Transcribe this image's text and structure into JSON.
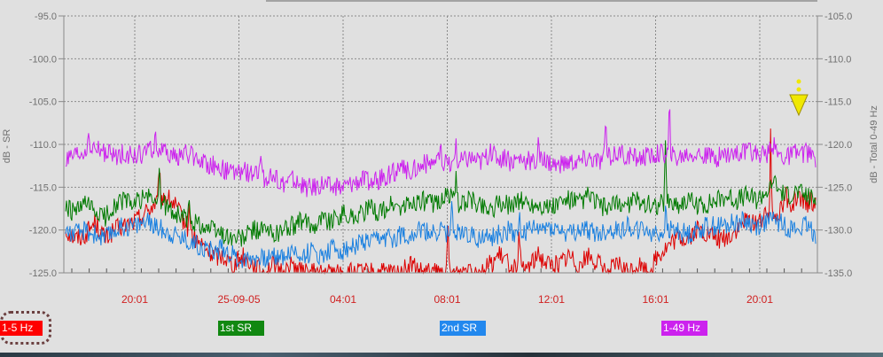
{
  "chart_data": {
    "type": "line",
    "ylabel": "dB - SR",
    "y2label": "dB - Total 0-49 Hz",
    "ylim": [
      -125.0,
      -95.0
    ],
    "y2lim": [
      -135.0,
      -105.0
    ],
    "y_ticks": [
      "-95.0",
      "-100.0",
      "-105.0",
      "-110.0",
      "-115.0",
      "-120.0",
      "-125.0"
    ],
    "y2_ticks": [
      "-105.0",
      "-110.0",
      "-115.0",
      "-120.0",
      "-125.0",
      "-130.0",
      "-135.0"
    ],
    "x_ticks": [
      "20:01",
      "25-09-05",
      "04:01",
      "08:01",
      "12:01",
      "16:01",
      "20:01"
    ],
    "grid": true,
    "series": [
      {
        "name": "1-5 Hz",
        "color": "#dd0000",
        "values": [
          -120,
          -121,
          -120.5,
          -119,
          -121,
          -120,
          -119.5,
          -119,
          -118,
          -117,
          -116,
          -117,
          -119,
          -121,
          -122,
          -123,
          -123,
          -124,
          -123,
          -124,
          -125,
          -124,
          -125,
          -124,
          -125,
          -125,
          -125,
          -125,
          -125,
          -125,
          -125,
          -125,
          -125,
          -125,
          -125,
          -124,
          -125,
          -125,
          -125,
          -125,
          -125,
          -124,
          -125,
          -124,
          -123,
          -124,
          -125,
          -124,
          -123,
          -124,
          -124,
          -123,
          -124,
          -123,
          -124,
          -125,
          -124,
          -125,
          -124,
          -125,
          -123,
          -122,
          -121,
          -121,
          -120,
          -120.5,
          -121,
          -121,
          -120,
          -119,
          -119,
          -118.5,
          -118,
          -117,
          -116.5,
          -117,
          -116.5
        ]
      },
      {
        "name": "1st SR",
        "color": "#007a00",
        "values": [
          -117.5,
          -118,
          -117,
          -118,
          -118.5,
          -117,
          -116.5,
          -117,
          -116,
          -116.5,
          -117,
          -118,
          -118.5,
          -119,
          -119.5,
          -120,
          -120.5,
          -121,
          -121,
          -120,
          -120,
          -120.5,
          -120,
          -119.5,
          -119,
          -119.5,
          -118.5,
          -119,
          -118,
          -118.5,
          -118,
          -117.5,
          -118,
          -117,
          -117.5,
          -117,
          -116.5,
          -117,
          -116.5,
          -116,
          -117,
          -116.5,
          -117,
          -117.5,
          -117,
          -117,
          -116.5,
          -117,
          -117,
          -117.5,
          -117,
          -116.5,
          -117,
          -116,
          -117,
          -117.5,
          -117,
          -117,
          -116.5,
          -117,
          -117,
          -116.5,
          -117,
          -116.5,
          -117,
          -117,
          -116.5,
          -116,
          -116.5,
          -116,
          -116.5,
          -115.5,
          -115,
          -116,
          -115.5,
          -116,
          -116.5
        ]
      },
      {
        "name": "2nd SR",
        "color": "#1a80e0",
        "values": [
          -120,
          -120.5,
          -120,
          -120.5,
          -121,
          -120,
          -119.5,
          -119.5,
          -119,
          -119.5,
          -120,
          -120.5,
          -121,
          -121.5,
          -122,
          -122.5,
          -122,
          -123,
          -123.5,
          -123,
          -123.5,
          -123,
          -123,
          -122.5,
          -123,
          -122.5,
          -123,
          -122,
          -122.5,
          -122,
          -121.5,
          -121.5,
          -121,
          -121,
          -120.5,
          -120.5,
          -120,
          -120.5,
          -120,
          -120.5,
          -120,
          -120.5,
          -121,
          -121,
          -120.5,
          -120,
          -120.5,
          -120,
          -120,
          -119.5,
          -120,
          -120.5,
          -120,
          -120,
          -120.5,
          -120,
          -120,
          -119.5,
          -120,
          -120,
          -120.5,
          -120,
          -120,
          -120.5,
          -120,
          -119.5,
          -119.5,
          -119.5,
          -119,
          -119,
          -119.5,
          -119,
          -119,
          -119.5,
          -120,
          -119.5,
          -120.5
        ]
      },
      {
        "name": "1-49 Hz",
        "color": "#cc22ee",
        "values": [
          -112,
          -111.5,
          -111,
          -110.5,
          -111,
          -111.5,
          -111,
          -111.5,
          -111,
          -110.5,
          -111,
          -111.5,
          -111,
          -111.5,
          -112,
          -112.5,
          -113,
          -113.5,
          -113,
          -113.5,
          -114,
          -114,
          -114.5,
          -114,
          -115,
          -115,
          -114.5,
          -115,
          -115,
          -114.5,
          -114,
          -114.5,
          -114,
          -113.5,
          -113,
          -113,
          -112.5,
          -112,
          -112,
          -112.5,
          -112,
          -111.5,
          -112,
          -111,
          -111.5,
          -112,
          -111.5,
          -112,
          -112,
          -112,
          -112.5,
          -112,
          -112,
          -111.5,
          -112,
          -111.5,
          -111,
          -111.5,
          -111.5,
          -111.5,
          -111,
          -111,
          -111.5,
          -111,
          -111,
          -111.5,
          -111.5,
          -111,
          -111,
          -111,
          -111,
          -111,
          -111,
          -111.5,
          -111,
          -111,
          -111.5
        ]
      }
    ],
    "marker": {
      "color": "#f0e800"
    }
  },
  "legend": [
    {
      "label": "1-5 Hz",
      "color": "#ff0000"
    },
    {
      "label": "1st SR",
      "color": "#118811"
    },
    {
      "label": "2nd SR",
      "color": "#2288ee"
    },
    {
      "label": "1-49 Hz",
      "color": "#cc22ee"
    }
  ]
}
